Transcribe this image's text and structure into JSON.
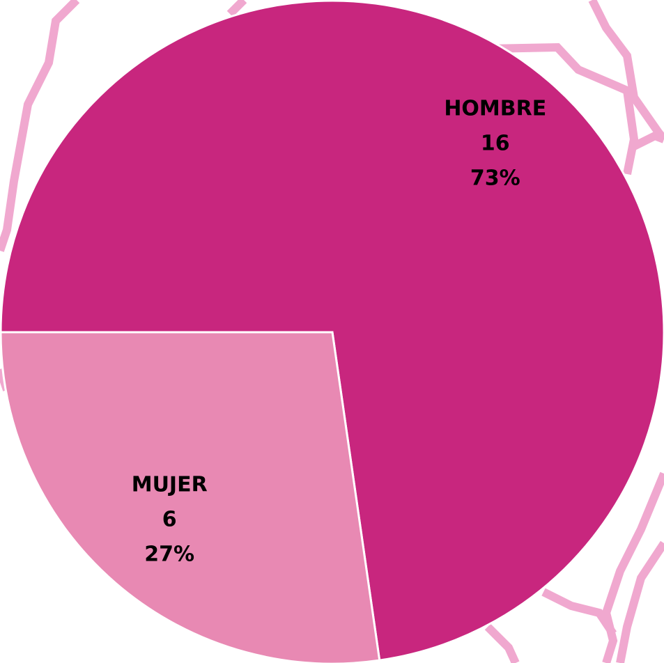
{
  "chart_data": {
    "type": "pie",
    "categories": [
      "HOMBRE",
      "MUJER"
    ],
    "values": [
      16,
      6
    ],
    "percent_labels": [
      "73%",
      "27%"
    ],
    "colors": [
      "#c8267e",
      "#e889b3"
    ]
  }
}
